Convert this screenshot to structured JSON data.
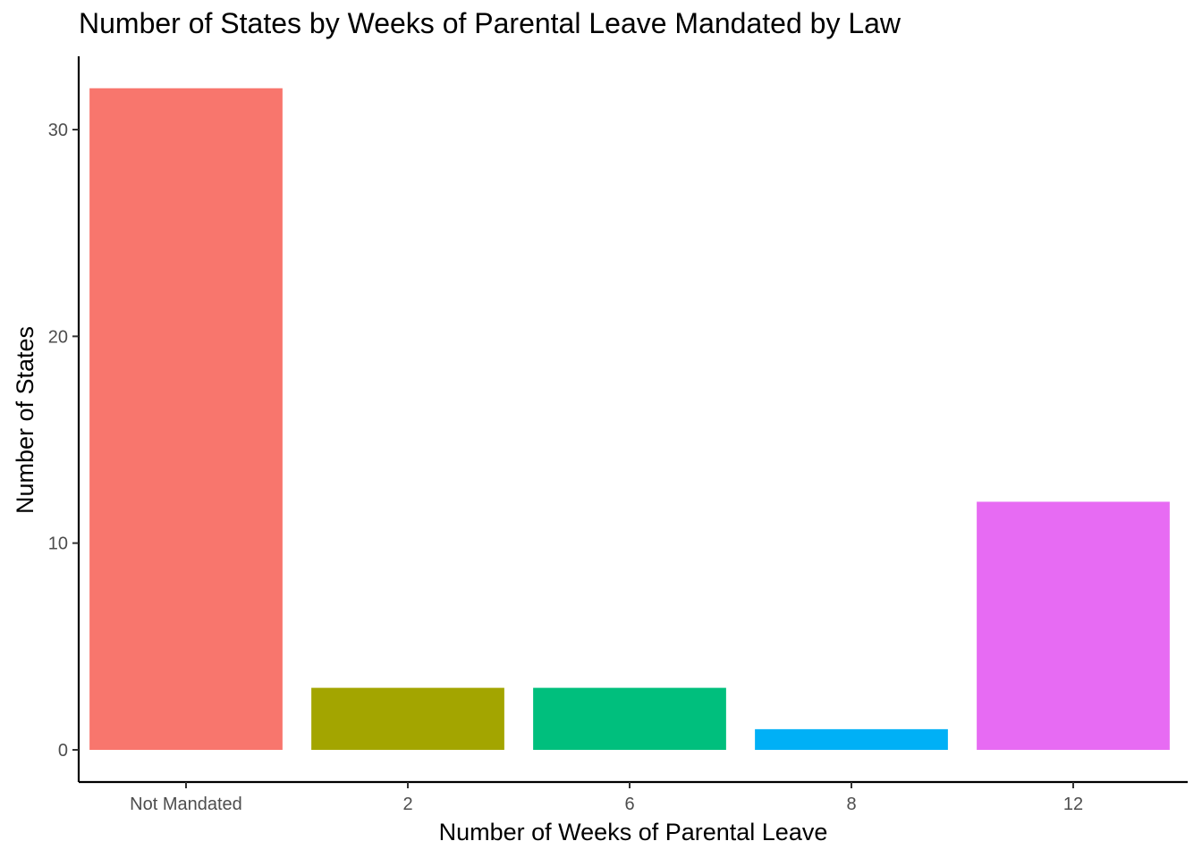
{
  "chart_data": {
    "type": "bar",
    "title": "Number of States by Weeks of Parental Leave Mandated by Law",
    "xlabel": "Number of Weeks of Parental Leave",
    "ylabel": "Number of States",
    "categories": [
      "Not Mandated",
      "2",
      "6",
      "8",
      "12"
    ],
    "values": [
      32,
      3,
      3,
      1,
      12
    ],
    "colors": [
      "#F8766D",
      "#A3A500",
      "#00BF7D",
      "#00B0F6",
      "#E76BF3"
    ],
    "yticks": [
      0,
      10,
      20,
      30
    ],
    "ylim": [
      -1.6,
      33.6
    ],
    "grid": false,
    "legend": "none"
  }
}
